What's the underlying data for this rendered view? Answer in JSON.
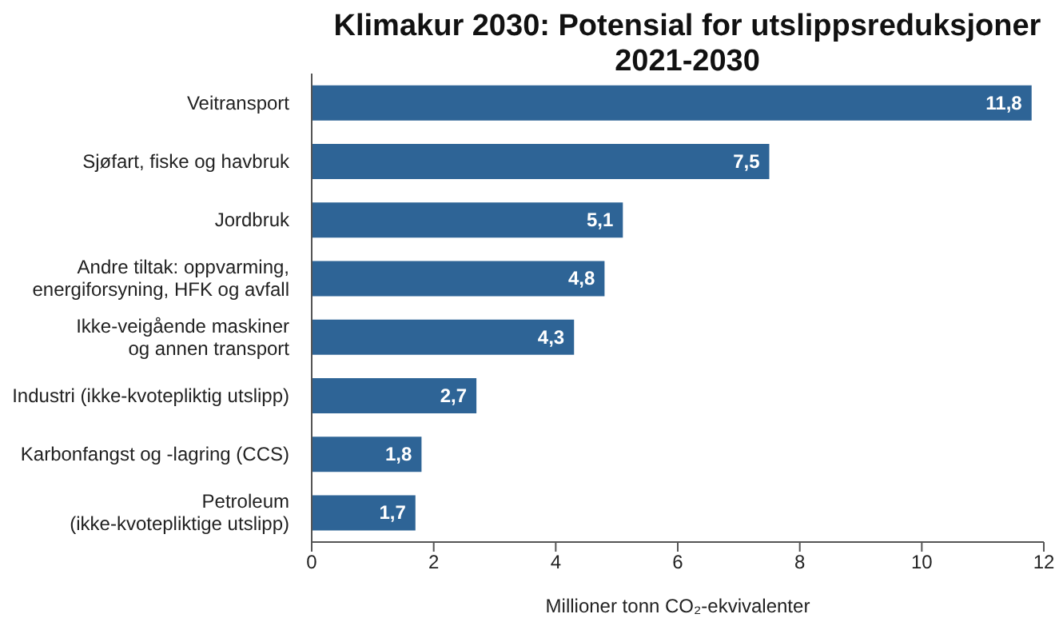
{
  "chart_data": {
    "type": "bar",
    "orientation": "horizontal",
    "title": "Klimakur 2030: Potensial for utslippsreduksjoner 2021-2030",
    "xlabel": "Millioner tonn CO₂-ekvivalenter",
    "categories": [
      "Veitransport",
      "Sjøfart, fiske og havbruk",
      "Jordbruk",
      "Andre tiltak: oppvarming,\nenergiforsyning, HFK og avfall",
      "Ikke-veigående maskiner\nog annen transport",
      "Industri (ikke-kvotepliktig utslipp)",
      "Karbonfangst og -lagring (CCS)",
      "Petroleum\n(ikke-kvotepliktige utslipp)"
    ],
    "values": [
      11.8,
      7.5,
      5.1,
      4.8,
      4.3,
      2.7,
      1.8,
      1.7
    ],
    "value_labels": [
      "11,8",
      "7,5",
      "5,1",
      "4,8",
      "4,3",
      "2,7",
      "1,8",
      "1,7"
    ],
    "color": "#2e6496",
    "xlim": [
      0,
      12
    ],
    "xticks": [
      0,
      2,
      4,
      6,
      8,
      10,
      12
    ],
    "grid": false,
    "legend": false
  }
}
